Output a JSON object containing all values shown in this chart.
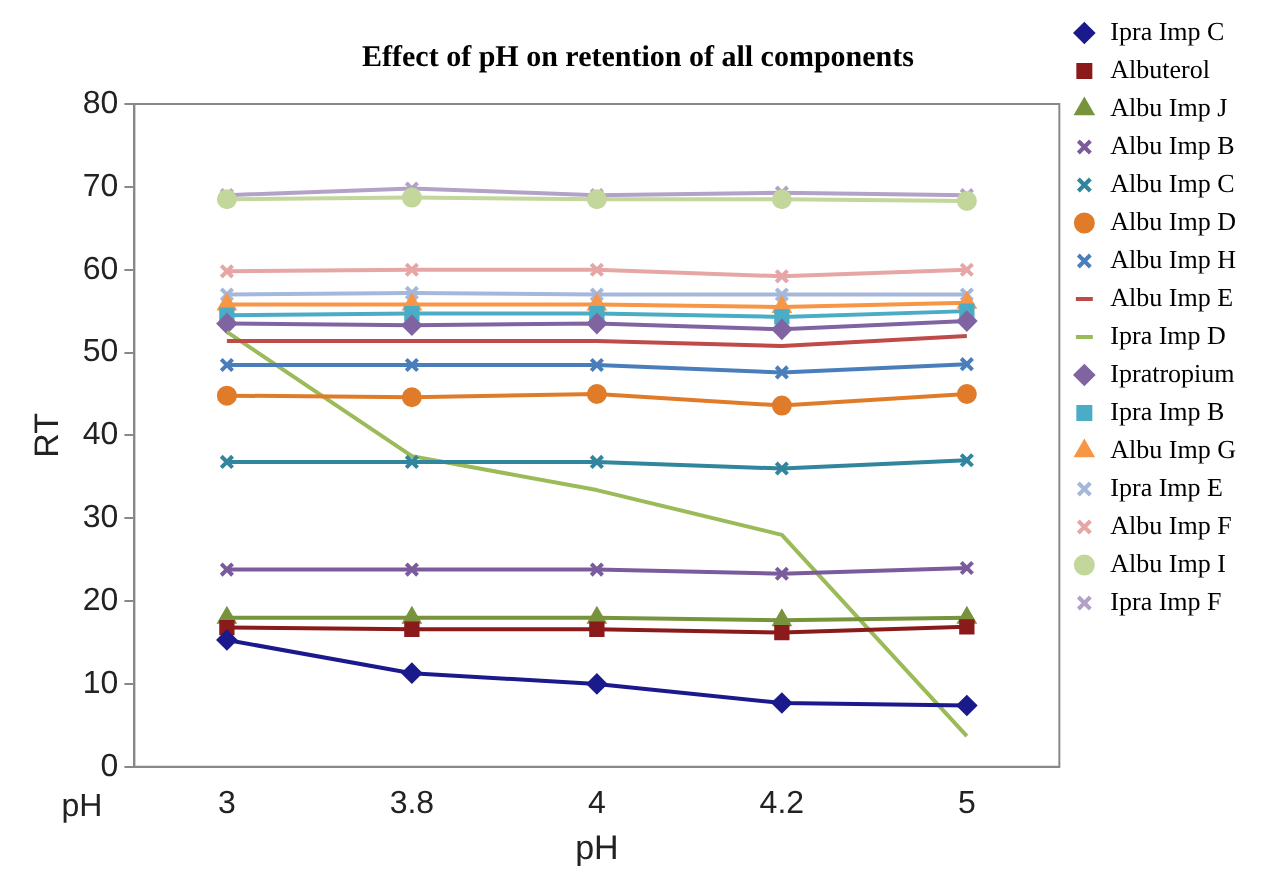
{
  "chart_data": {
    "type": "line",
    "title": "Effect of pH on retention of all components",
    "xlabel": "pH",
    "ylabel": "RT",
    "annotations": [
      "pH"
    ],
    "categories": [
      "3",
      "3.8",
      "4",
      "4.2",
      "5"
    ],
    "ylim": [
      0,
      80
    ],
    "yticks": [
      0,
      10,
      20,
      30,
      40,
      50,
      60,
      70,
      80
    ],
    "grid": false,
    "legend": "right",
    "line_style": "solid",
    "series": [
      {
        "name": "Ipra Imp C",
        "color": "#1a1a8c",
        "marker": "diamond",
        "values": [
          15.3,
          11.3,
          10,
          7.7,
          7.4
        ]
      },
      {
        "name": "Albuterol",
        "color": "#8b1a1a",
        "marker": "square",
        "values": [
          16.8,
          16.6,
          16.6,
          16.2,
          16.9
        ]
      },
      {
        "name": "Albu Imp J",
        "color": "#77933c",
        "marker": "triangle",
        "values": [
          18,
          18,
          18,
          17.7,
          18
        ]
      },
      {
        "name": "Albu Imp B",
        "color": "#7a5c9c",
        "marker": "cross",
        "values": [
          23.8,
          23.8,
          23.8,
          23.3,
          24
        ]
      },
      {
        "name": "Albu Imp C",
        "color": "#31859c",
        "marker": "cross",
        "values": [
          36.8,
          36.8,
          36.8,
          36,
          37
        ]
      },
      {
        "name": "Albu Imp D",
        "color": "#e07b2a",
        "marker": "circle",
        "values": [
          44.8,
          44.6,
          45,
          43.6,
          45
        ]
      },
      {
        "name": "Albu Imp H",
        "color": "#4a7ebb",
        "marker": "cross",
        "values": [
          48.5,
          48.5,
          48.5,
          47.6,
          48.6
        ]
      },
      {
        "name": "Albu Imp E",
        "color": "#be4b48",
        "marker": "none",
        "values": [
          51.4,
          51.4,
          51.4,
          50.8,
          52
        ]
      },
      {
        "name": "Ipra Imp D",
        "color": "#9bbb59",
        "marker": "none",
        "values": [
          52.5,
          37.5,
          33.4,
          28,
          3.7
        ]
      },
      {
        "name": "Ipratropium",
        "color": "#8064a2",
        "marker": "diamond",
        "values": [
          53.5,
          53.3,
          53.5,
          52.8,
          53.8
        ]
      },
      {
        "name": "Ipra Imp B",
        "color": "#4bacc6",
        "marker": "square",
        "values": [
          54.5,
          54.7,
          54.7,
          54.3,
          55
        ]
      },
      {
        "name": "Albu Imp G",
        "color": "#f79646",
        "marker": "triangle",
        "values": [
          55.8,
          55.8,
          55.8,
          55.5,
          56
        ]
      },
      {
        "name": "Ipra Imp E",
        "color": "#a5b8dc",
        "marker": "cross",
        "values": [
          57,
          57.2,
          57,
          57,
          57
        ]
      },
      {
        "name": "Albu Imp F",
        "color": "#e6a6a5",
        "marker": "cross",
        "values": [
          59.8,
          60,
          60,
          59.2,
          60
        ]
      },
      {
        "name": "Albu Imp I",
        "color": "#c3d69b",
        "marker": "circle",
        "values": [
          68.5,
          68.7,
          68.5,
          68.5,
          68.3
        ]
      },
      {
        "name": "Ipra Imp F",
        "color": "#b3a2c7",
        "marker": "cross",
        "values": [
          69,
          69.8,
          69,
          69.3,
          69
        ]
      }
    ]
  }
}
